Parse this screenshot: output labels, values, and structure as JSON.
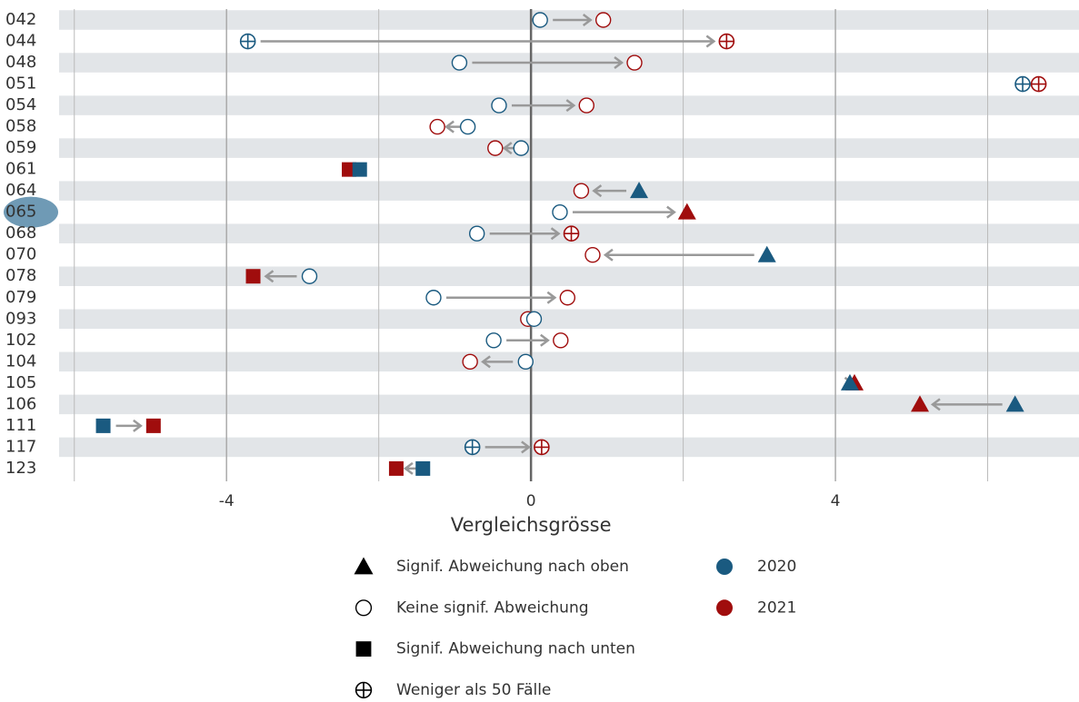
{
  "chart_data": {
    "type": "dot-arrow",
    "x_label": "Vergleichsgrösse",
    "categories": [
      "042",
      "044",
      "048",
      "051",
      "054",
      "058",
      "059",
      "061",
      "064",
      "065",
      "068",
      "070",
      "078",
      "079",
      "093",
      "102",
      "104",
      "105",
      "106",
      "111",
      "117",
      "123"
    ],
    "selected": 9,
    "xlim": [
      -6.2,
      7.2
    ],
    "xticks": [
      -4,
      0,
      4
    ],
    "xgrid": [
      -6,
      -2,
      2,
      6
    ],
    "series": [
      {
        "name": "2020",
        "color": "#1a5a80",
        "values": [
          0.12,
          -3.72,
          -0.94,
          6.46,
          -0.42,
          -0.83,
          -0.13,
          -2.25,
          1.42,
          0.38,
          -0.71,
          3.1,
          -2.91,
          -1.28,
          0.04,
          -0.49,
          -0.07,
          4.19,
          6.36,
          -5.62,
          -0.77,
          -1.42
        ],
        "shapes": [
          "circle",
          "plus",
          "circle",
          "plus",
          "circle",
          "circle",
          "circle",
          "square",
          "triangle",
          "circle",
          "circle",
          "triangle",
          "circle",
          "circle",
          "circle",
          "circle",
          "circle",
          "triangle",
          "triangle",
          "square",
          "plus",
          "square"
        ]
      },
      {
        "name": "2021",
        "color": "#a00d0d",
        "values": [
          0.95,
          2.57,
          1.36,
          6.67,
          0.73,
          -1.23,
          -0.47,
          -2.39,
          0.66,
          2.05,
          0.53,
          0.81,
          -3.65,
          0.48,
          -0.04,
          0.39,
          -0.8,
          4.25,
          5.11,
          -4.96,
          0.14,
          -1.77
        ],
        "shapes": [
          "circle",
          "plus",
          "circle",
          "plus",
          "circle",
          "circle",
          "circle",
          "square",
          "circle",
          "triangle",
          "plus",
          "circle",
          "square",
          "circle",
          "circle",
          "circle",
          "circle",
          "triangle",
          "triangle",
          "square",
          "plus",
          "square"
        ]
      }
    ],
    "shape_legend": [
      {
        "shape": "triangle",
        "label": "Signif. Abweichung nach oben"
      },
      {
        "shape": "circle",
        "label": "Keine signif. Abweichung"
      },
      {
        "shape": "square",
        "label": "Signif. Abweichung nach unten"
      },
      {
        "shape": "plus",
        "label": "Weniger als 50 Fälle"
      }
    ]
  }
}
